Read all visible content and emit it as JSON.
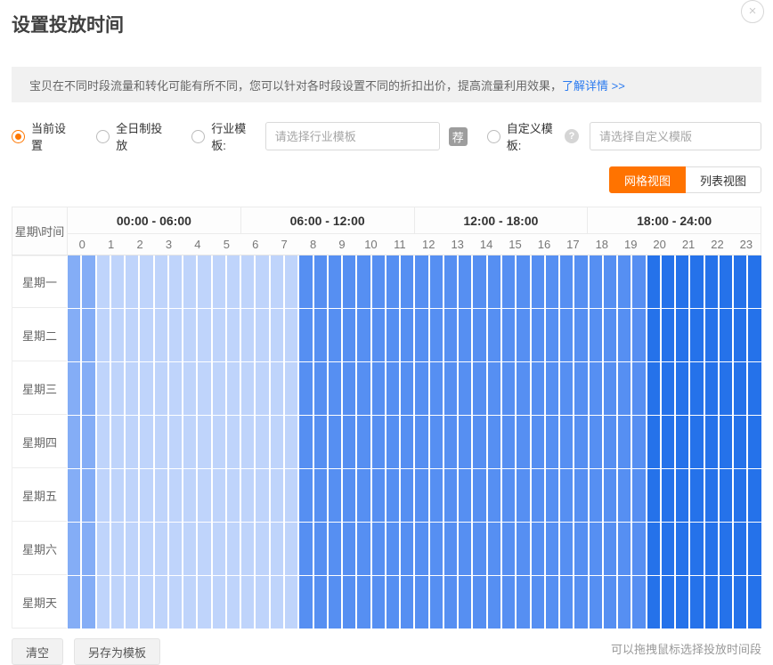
{
  "page": {
    "title": "设置投放时间"
  },
  "close_icon": "×",
  "colors": {
    "accent_orange": "#ff7300",
    "link_blue": "#2a7af0",
    "cell_hour0": "#84adf6",
    "cell_early_morning": "#bfd4fb",
    "cell_daytime": "#568ff2",
    "cell_evening": "#2572ea"
  },
  "notice": {
    "text": "宝贝在不同时段流量和转化可能有所不同，您可以针对各时段设置不同的折扣出价，提高流量利用效果，",
    "link": "了解详情 >>"
  },
  "options": {
    "current": "当前设置",
    "fullday": "全日制投放",
    "industry_label": "行业模板:",
    "industry_placeholder": "请选择行业模板",
    "recommend_badge": "荐",
    "custom_label": "自定义模板:",
    "help_icon": "?",
    "custom_placeholder": "请选择自定义模版"
  },
  "view_toggle": {
    "grid": "网格视图",
    "list": "列表视图"
  },
  "schedule": {
    "corner_label": "星期\\时间",
    "time_bands": [
      "00:00 - 06:00",
      "06:00 - 12:00",
      "12:00 - 18:00",
      "18:00 - 24:00"
    ],
    "hours": [
      "0",
      "1",
      "2",
      "3",
      "4",
      "5",
      "6",
      "7",
      "8",
      "9",
      "10",
      "11",
      "12",
      "13",
      "14",
      "15",
      "16",
      "17",
      "18",
      "19",
      "20",
      "21",
      "22",
      "23"
    ],
    "days": [
      "星期一",
      "星期二",
      "星期三",
      "星期四",
      "星期五",
      "星期六",
      "星期天"
    ],
    "cells_per_hour": 2,
    "hour_colors": [
      "#84adf6",
      "#bfd4fb",
      "#bfd4fb",
      "#bfd4fb",
      "#bfd4fb",
      "#bfd4fb",
      "#bfd4fb",
      "#bfd4fb",
      "#568ff2",
      "#568ff2",
      "#568ff2",
      "#568ff2",
      "#568ff2",
      "#568ff2",
      "#568ff2",
      "#568ff2",
      "#568ff2",
      "#568ff2",
      "#568ff2",
      "#568ff2",
      "#2572ea",
      "#2572ea",
      "#2572ea",
      "#2572ea"
    ]
  },
  "footer": {
    "clear": "清空",
    "save_template": "另存为模板",
    "hint": "可以拖拽鼠标选择投放时间段"
  }
}
